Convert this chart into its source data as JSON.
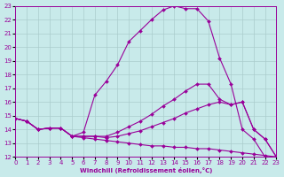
{
  "xlabel": "Windchill (Refroidissement éolien,°C)",
  "xlim": [
    0,
    23
  ],
  "ylim": [
    12,
    23
  ],
  "xticks": [
    0,
    1,
    2,
    3,
    4,
    5,
    6,
    7,
    8,
    9,
    10,
    11,
    12,
    13,
    14,
    15,
    16,
    17,
    18,
    19,
    20,
    21,
    22,
    23
  ],
  "yticks": [
    12,
    13,
    14,
    15,
    16,
    17,
    18,
    19,
    20,
    21,
    22,
    23
  ],
  "bg_color": "#c8eaea",
  "line_color": "#990099",
  "grid_color": "#aacccc",
  "line1_x": [
    0,
    1,
    2,
    3,
    4,
    5,
    6,
    7,
    8,
    9,
    10,
    11,
    12,
    13,
    14,
    15,
    16,
    17,
    18,
    19,
    20,
    21,
    22,
    23
  ],
  "line1_y": [
    14.8,
    14.6,
    14.0,
    14.1,
    14.1,
    13.5,
    13.8,
    16.5,
    17.5,
    18.7,
    20.4,
    21.2,
    22.0,
    22.7,
    23.0,
    22.8,
    22.8,
    21.9,
    19.2,
    17.3,
    14.0,
    13.3,
    12.0,
    12.0
  ],
  "line2_x": [
    0,
    1,
    2,
    3,
    4,
    5,
    6,
    7,
    8,
    9,
    10,
    11,
    12,
    13,
    14,
    15,
    16,
    17,
    18,
    19,
    20,
    21,
    22,
    23
  ],
  "line2_y": [
    14.8,
    14.6,
    14.0,
    14.1,
    14.1,
    13.5,
    13.5,
    13.5,
    13.5,
    13.8,
    14.2,
    14.6,
    15.1,
    15.7,
    16.2,
    16.8,
    17.3,
    17.3,
    16.2,
    15.8,
    16.0,
    14.0,
    13.3,
    12.0
  ],
  "line3_x": [
    0,
    1,
    2,
    3,
    4,
    5,
    6,
    7,
    8,
    9,
    10,
    11,
    12,
    13,
    14,
    15,
    16,
    17,
    18,
    19,
    20,
    21,
    22,
    23
  ],
  "line3_y": [
    14.8,
    14.6,
    14.0,
    14.1,
    14.1,
    13.5,
    13.5,
    13.5,
    13.4,
    13.5,
    13.7,
    13.9,
    14.2,
    14.5,
    14.8,
    15.2,
    15.5,
    15.8,
    16.0,
    15.8,
    16.0,
    14.0,
    13.3,
    12.0
  ],
  "line4_x": [
    0,
    1,
    2,
    3,
    4,
    5,
    6,
    7,
    8,
    9,
    10,
    11,
    12,
    13,
    14,
    15,
    16,
    17,
    18,
    19,
    20,
    21,
    22,
    23
  ],
  "line4_y": [
    14.8,
    14.6,
    14.0,
    14.1,
    14.1,
    13.5,
    13.4,
    13.3,
    13.2,
    13.1,
    13.0,
    12.9,
    12.8,
    12.8,
    12.7,
    12.7,
    12.6,
    12.6,
    12.5,
    12.4,
    12.3,
    12.2,
    12.1,
    12.0
  ]
}
